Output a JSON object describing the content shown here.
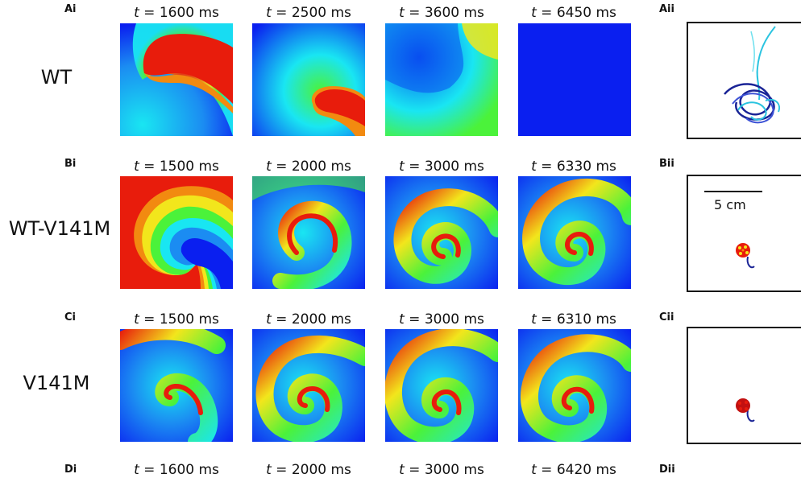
{
  "rows": [
    {
      "left_label": "Ai",
      "right_label": "Aii",
      "genotype": "WT",
      "frames": [
        {
          "t_symbol": "t",
          "equals": " = ",
          "value": "1600",
          "unit": " ms"
        },
        {
          "t_symbol": "t",
          "equals": " = ",
          "value": "2500",
          "unit": " ms"
        },
        {
          "t_symbol": "t",
          "equals": " = ",
          "value": "3600",
          "unit": " ms"
        },
        {
          "t_symbol": "t",
          "equals": " = ",
          "value": "6450",
          "unit": " ms"
        }
      ]
    },
    {
      "left_label": "Bi",
      "right_label": "Bii",
      "genotype": "WT-V141M",
      "frames": [
        {
          "t_symbol": "t",
          "equals": " = ",
          "value": "1500",
          "unit": " ms"
        },
        {
          "t_symbol": "t",
          "equals": " = ",
          "value": "2000",
          "unit": " ms"
        },
        {
          "t_symbol": "t",
          "equals": " = ",
          "value": "3000",
          "unit": " ms"
        },
        {
          "t_symbol": "t",
          "equals": " = ",
          "value": "6330",
          "unit": " ms"
        }
      ],
      "scale_bar_label": "5 cm"
    },
    {
      "left_label": "Ci",
      "right_label": "Cii",
      "genotype": "V141M",
      "frames": [
        {
          "t_symbol": "t",
          "equals": " = ",
          "value": "1500",
          "unit": " ms"
        },
        {
          "t_symbol": "t",
          "equals": " = ",
          "value": "2000",
          "unit": " ms"
        },
        {
          "t_symbol": "t",
          "equals": " = ",
          "value": "3000",
          "unit": " ms"
        },
        {
          "t_symbol": "t",
          "equals": " = ",
          "value": "6310",
          "unit": " ms"
        }
      ]
    },
    {
      "left_label": "Di",
      "right_label": "Dii",
      "frames": [
        {
          "t_symbol": "t",
          "equals": " = ",
          "value": "1600",
          "unit": " ms"
        },
        {
          "t_symbol": "t",
          "equals": " = ",
          "value": "2000",
          "unit": " ms"
        },
        {
          "t_symbol": "t",
          "equals": " = ",
          "value": "3000",
          "unit": " ms"
        },
        {
          "t_symbol": "t",
          "equals": " = ",
          "value": "6420",
          "unit": " ms"
        }
      ]
    }
  ],
  "colors": {
    "resting": "#0a1ff0",
    "cyan": "#19e6f2",
    "green": "#4bf23a",
    "yellow": "#f2e61c",
    "orange": "#f28a10",
    "red": "#e81c0c",
    "tip_dark_blue": "#1a2496",
    "tip_cyan": "#2bc4e0"
  }
}
